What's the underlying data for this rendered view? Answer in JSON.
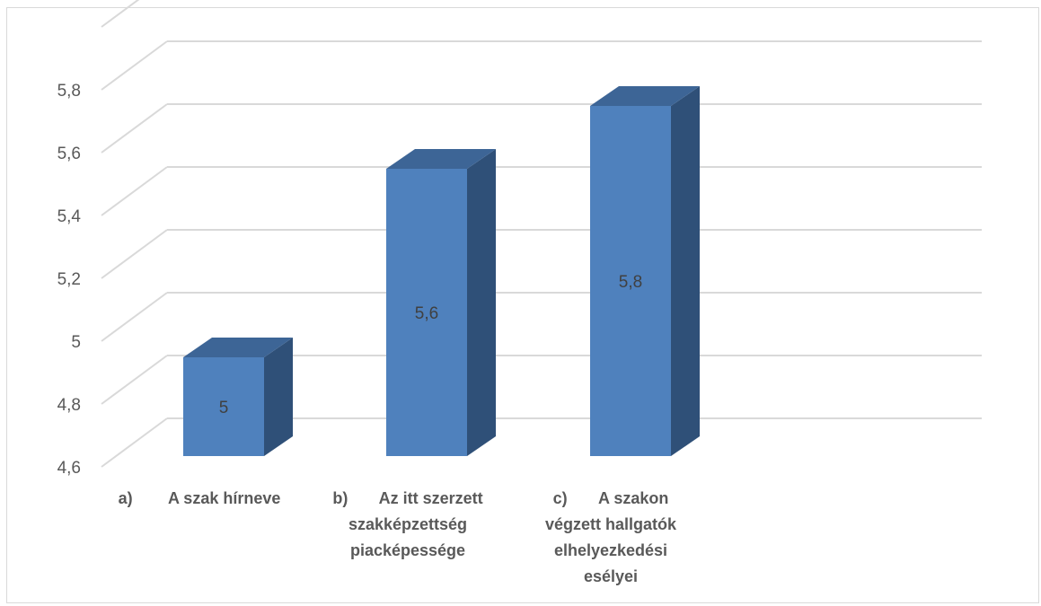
{
  "chart_data": {
    "type": "bar",
    "style": "3d-column",
    "categories": [
      "a)        A szak hírneve",
      "b)       Az itt szerzett\nszakképzettség\npiacképessége",
      "c)       A szakon\nvégzett hallgatók\nelhelyezkedési\nesélyei"
    ],
    "values": [
      5,
      5.6,
      5.8
    ],
    "data_labels": [
      "5",
      "5,6",
      "5,8"
    ],
    "y_ticks": [
      "4,6",
      "4,8",
      "5",
      "5,2",
      "5,4",
      "5,6",
      "5,8"
    ],
    "ylim": [
      4.6,
      6.0
    ],
    "grid": true,
    "legend": "none",
    "title": "",
    "xlabel": "",
    "ylabel": "",
    "colors": {
      "front": "#4f81bd",
      "side": "#2f5078",
      "top": "#3d6596",
      "grid": "#d9d9d9"
    }
  }
}
